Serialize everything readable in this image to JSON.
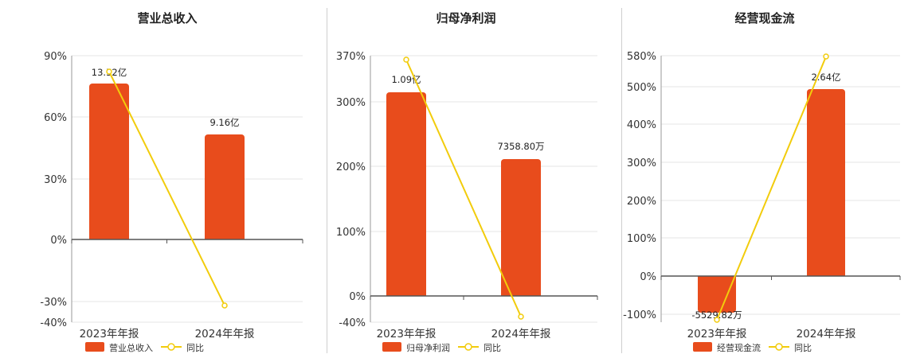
{
  "chart_data": [
    {
      "type": "bar",
      "title": "营业总收入",
      "categories": [
        "2023年年报",
        "2024年年报"
      ],
      "series": [
        {
          "name": "营业总收入",
          "type": "bar",
          "labels": [
            "13.52亿",
            "9.16亿"
          ],
          "values": [
            13.52,
            9.16
          ],
          "unit": "亿"
        },
        {
          "name": "同比",
          "type": "line",
          "values": [
            81,
            -32
          ],
          "axis": "right"
        }
      ],
      "yticks": [
        "90%",
        "60%",
        "30%",
        "0%",
        "-30%",
        "-40%"
      ],
      "ylim": [
        -40,
        90
      ],
      "colors": {
        "bar": "#e84c1c",
        "line": "#f2cc0c"
      }
    },
    {
      "type": "bar",
      "title": "归母净利润",
      "categories": [
        "2023年年报",
        "2024年年报"
      ],
      "series": [
        {
          "name": "归母净利润",
          "type": "bar",
          "labels": [
            "1.09亿",
            "7358.80万"
          ],
          "values": [
            1.09,
            0.73588
          ],
          "unit": "亿"
        },
        {
          "name": "同比",
          "type": "line",
          "values": [
            361,
            -32
          ],
          "axis": "right"
        }
      ],
      "yticks": [
        "370%",
        "300%",
        "200%",
        "100%",
        "0%",
        "-40%"
      ],
      "ylim": [
        -40,
        370
      ],
      "colors": {
        "bar": "#e84c1c",
        "line": "#f2cc0c"
      }
    },
    {
      "type": "bar",
      "title": "经营现金流",
      "categories": [
        "2023年年报",
        "2024年年报"
      ],
      "series": [
        {
          "name": "经营现金流",
          "type": "bar",
          "labels": [
            "-5529.82万",
            "2.64亿"
          ],
          "values": [
            -0.552982,
            2.64
          ],
          "unit": "亿"
        },
        {
          "name": "同比",
          "type": "line",
          "values": [
            -112,
            580
          ],
          "axis": "right"
        }
      ],
      "yticks": [
        "580%",
        "500%",
        "400%",
        "300%",
        "200%",
        "100%",
        "0%",
        "-100%"
      ],
      "ylim": [
        -120,
        580
      ],
      "colors": {
        "bar": "#e84c1c",
        "line": "#f2cc0c"
      }
    }
  ]
}
